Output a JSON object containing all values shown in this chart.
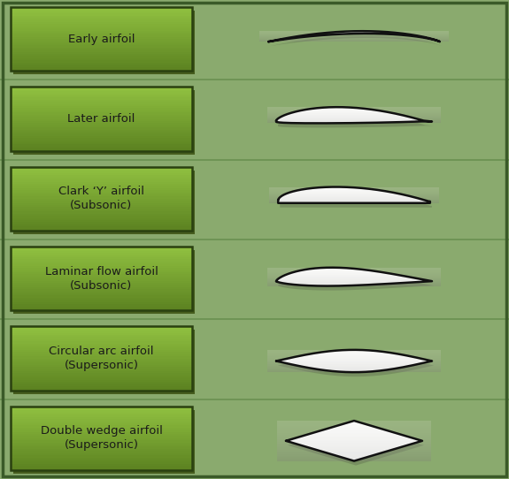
{
  "background_color": "#8aaa6e",
  "border_color": "#3a5a28",
  "box_bg_top": "#90c040",
  "box_bg_bottom": "#5a8020",
  "box_border": "#2a4010",
  "box_shadow": "#3a5010",
  "text_color": "#1a1a1a",
  "airfoil_outline": "#111111",
  "separator_color": "#6a9050",
  "rows": [
    {
      "label": "Early airfoil",
      "type": "early"
    },
    {
      "label": "Later airfoil",
      "type": "later"
    },
    {
      "label": "Clark ‘Y’ airfoil\n(Subsonic)",
      "type": "clark_y"
    },
    {
      "label": "Laminar flow airfoil\n(Subsonic)",
      "type": "laminar"
    },
    {
      "label": "Circular arc airfoil\n(Supersonic)",
      "type": "circular_arc"
    },
    {
      "label": "Double wedge airfoil\n(Supersonic)",
      "type": "double_wedge"
    }
  ]
}
